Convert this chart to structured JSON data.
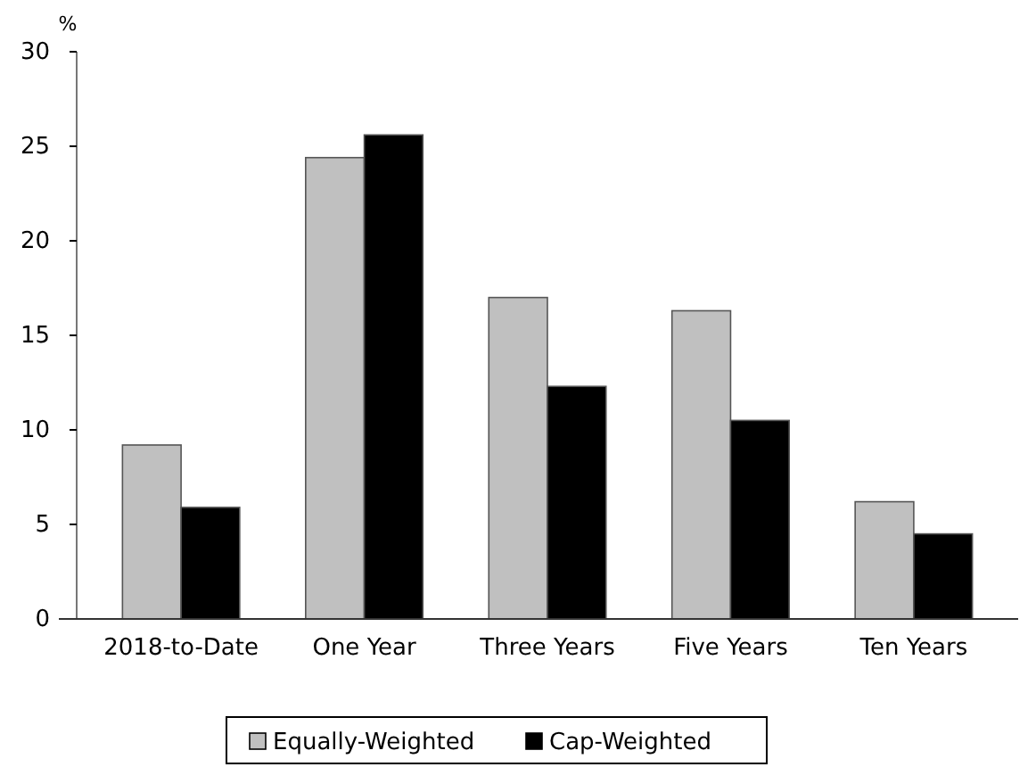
{
  "chart_data": {
    "type": "bar",
    "ylabel": "%",
    "categories": [
      "2018-to-Date",
      "One Year",
      "Three Years",
      "Five Years",
      "Ten Years"
    ],
    "series": [
      {
        "name": "Equally-Weighted",
        "color": "#c0c0c0",
        "values": [
          9.2,
          24.4,
          17.0,
          16.3,
          6.2
        ]
      },
      {
        "name": "Cap-Weighted",
        "color": "#000000",
        "values": [
          5.9,
          25.6,
          12.3,
          10.5,
          4.5
        ]
      }
    ],
    "ylim": [
      0,
      30
    ],
    "yticks": [
      0,
      5,
      10,
      15,
      20,
      25,
      30
    ],
    "grid": false,
    "legend": "bottom"
  }
}
